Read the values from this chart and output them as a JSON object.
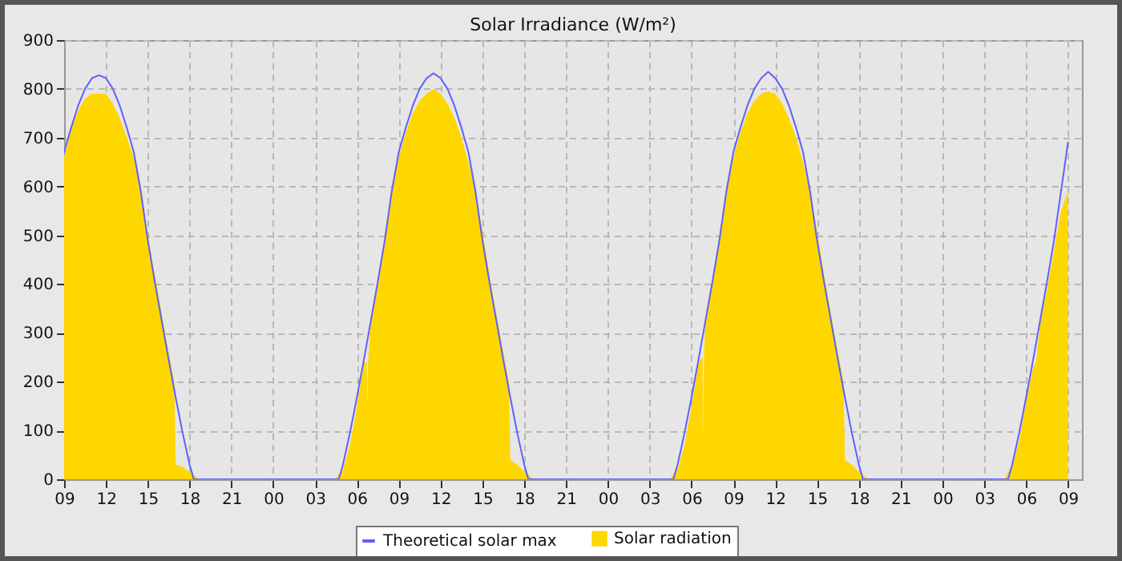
{
  "chart_data": {
    "type": "line",
    "title": "Solar Irradiance (W/m²)",
    "xlim": [
      9,
      82
    ],
    "xticks": [
      {
        "value": 9,
        "label": "09"
      },
      {
        "value": 12,
        "label": "12"
      },
      {
        "value": 15,
        "label": "15"
      },
      {
        "value": 18,
        "label": "18"
      },
      {
        "value": 21,
        "label": "21"
      },
      {
        "value": 24,
        "label": "00"
      },
      {
        "value": 27,
        "label": "03"
      },
      {
        "value": 30,
        "label": "06"
      },
      {
        "value": 33,
        "label": "09"
      },
      {
        "value": 36,
        "label": "12"
      },
      {
        "value": 39,
        "label": "15"
      },
      {
        "value": 42,
        "label": "18"
      },
      {
        "value": 45,
        "label": "21"
      },
      {
        "value": 48,
        "label": "00"
      },
      {
        "value": 51,
        "label": "03"
      },
      {
        "value": 54,
        "label": "06"
      },
      {
        "value": 57,
        "label": "09"
      },
      {
        "value": 60,
        "label": "12"
      },
      {
        "value": 63,
        "label": "15"
      },
      {
        "value": 66,
        "label": "18"
      },
      {
        "value": 69,
        "label": "21"
      },
      {
        "value": 72,
        "label": "00"
      },
      {
        "value": 75,
        "label": "03"
      },
      {
        "value": 78,
        "label": "06"
      },
      {
        "value": 81,
        "label": "09"
      }
    ],
    "ylim": [
      0,
      900
    ],
    "yticks": [
      0,
      100,
      200,
      300,
      400,
      500,
      600,
      700,
      800,
      900
    ],
    "grid": true,
    "legend": "bottom",
    "line_style": "solid",
    "marker": "none",
    "series": [
      {
        "name": "Theoretical solar max",
        "color": "#6060ff",
        "x": [
          9,
          9.5,
          10,
          10.5,
          11,
          11.5,
          12,
          12.5,
          13,
          13.5,
          14,
          14.5,
          15,
          15.5,
          16,
          16.5,
          17,
          17.5,
          18,
          18.3,
          28.7,
          29,
          29.5,
          30,
          30.5,
          31,
          31.5,
          32,
          32.5,
          33,
          33.5,
          34,
          34.5,
          35,
          35.5,
          36,
          36.5,
          37,
          37.5,
          38,
          38.5,
          39,
          39.5,
          40,
          40.5,
          41,
          41.5,
          42,
          42.3,
          52.7,
          53,
          53.5,
          54,
          54.5,
          55,
          55.5,
          56,
          56.5,
          57,
          57.5,
          58,
          58.5,
          59,
          59.5,
          60,
          60.5,
          61,
          61.5,
          62,
          62.5,
          63,
          63.5,
          64,
          64.5,
          65,
          65.5,
          66,
          66.3,
          76.7,
          77,
          77.5,
          78,
          78.5,
          79,
          79.5,
          80,
          80.5,
          81
        ],
        "values": [
          670,
          720,
          765,
          800,
          822,
          828,
          822,
          800,
          765,
          720,
          670,
          590,
          490,
          405,
          325,
          245,
          168,
          95,
          30,
          0,
          0,
          30,
          95,
          168,
          245,
          325,
          405,
          490,
          590,
          670,
          720,
          765,
          800,
          822,
          832,
          822,
          800,
          765,
          720,
          670,
          590,
          490,
          405,
          325,
          245,
          168,
          95,
          30,
          0,
          0,
          30,
          95,
          168,
          245,
          325,
          405,
          490,
          590,
          670,
          720,
          765,
          800,
          822,
          835,
          822,
          800,
          765,
          720,
          670,
          590,
          490,
          405,
          325,
          245,
          168,
          95,
          30,
          0,
          0,
          30,
          95,
          168,
          245,
          325,
          405,
          490,
          590,
          690
        ]
      },
      {
        "name": "Solar radiation",
        "color": "#ffd700",
        "type": "area",
        "x": [
          9,
          9.5,
          10,
          10.5,
          11,
          11.5,
          12,
          12.5,
          13,
          13.5,
          14,
          14.5,
          15,
          15.5,
          16,
          16.5,
          16.9,
          17,
          17.5,
          18,
          18.5,
          18.6,
          28.5,
          28.6,
          29,
          29.5,
          30,
          30.5,
          30.7,
          30.75,
          30.8,
          31,
          31.5,
          32,
          32.5,
          33,
          33.5,
          34,
          34.5,
          35,
          35.5,
          36,
          36.5,
          37,
          37.5,
          38,
          38.5,
          39,
          39.5,
          40,
          40.5,
          40.9,
          41,
          41.5,
          42,
          42.5,
          42.6,
          52.5,
          52.6,
          53,
          53.5,
          54,
          54.5,
          54.8,
          54.85,
          54.9,
          55,
          55.5,
          56,
          56.5,
          57,
          57.5,
          58,
          58.5,
          59,
          59.5,
          60,
          60.5,
          61,
          61.5,
          62,
          62.5,
          63,
          63.5,
          64,
          64.5,
          64.9,
          65,
          65.5,
          66,
          66.5,
          66.6,
          76.5,
          76.6,
          77,
          77.5,
          78,
          78.5,
          78.7,
          79,
          79.5,
          80,
          80.5,
          81
        ],
        "values": [
          660,
          720,
          755,
          780,
          790,
          790,
          790,
          770,
          740,
          700,
          660,
          590,
          500,
          420,
          340,
          260,
          200,
          30,
          25,
          15,
          5,
          0,
          0,
          8,
          20,
          70,
          150,
          240,
          240,
          150,
          240,
          330,
          410,
          500,
          600,
          660,
          710,
          750,
          775,
          790,
          800,
          790,
          770,
          740,
          700,
          650,
          590,
          510,
          420,
          340,
          260,
          200,
          40,
          30,
          15,
          5,
          0,
          0,
          8,
          20,
          70,
          150,
          240,
          250,
          80,
          260,
          330,
          410,
          500,
          600,
          660,
          710,
          750,
          775,
          790,
          795,
          790,
          770,
          740,
          700,
          650,
          590,
          510,
          420,
          340,
          260,
          200,
          40,
          30,
          15,
          5,
          0,
          0,
          10,
          25,
          80,
          160,
          230,
          240,
          320,
          390,
          470,
          550,
          590
        ]
      }
    ]
  }
}
